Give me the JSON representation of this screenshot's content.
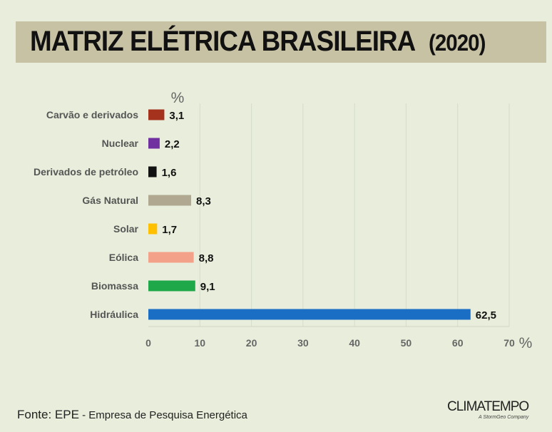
{
  "title": "MATRIZ ELÉTRICA BRASILEIRA",
  "title_year": "(2020)",
  "chart_data": {
    "type": "bar",
    "orientation": "horizontal",
    "unit_label": "%",
    "xaxis_unit": "%",
    "categories": [
      "Carvão e derivados",
      "Nuclear",
      "Derivados de petróleo",
      "Gás Natural",
      "Solar",
      "Eólica",
      "Biomassa",
      "Hidráulica"
    ],
    "values": [
      3.1,
      2.2,
      1.6,
      8.3,
      1.7,
      8.8,
      9.1,
      62.5
    ],
    "data_labels": [
      "3,1",
      "2,2",
      "1,6",
      "8,3",
      "1,7",
      "8,8",
      "9,1",
      "62,5"
    ],
    "colors": [
      "#a5321c",
      "#7030a0",
      "#111111",
      "#b1a891",
      "#ffc000",
      "#f4a18a",
      "#1ea84a",
      "#1a6fc4"
    ],
    "xlim": [
      0,
      70
    ],
    "xticks": [
      "0",
      "10",
      "20",
      "30",
      "40",
      "50",
      "60",
      "70"
    ],
    "grid": true
  },
  "source": {
    "prefix": "Fonte: EPE",
    "rest": " - Empresa de Pesquisa Energética"
  },
  "logo": {
    "name": "CLIMATEMPO",
    "tagline": "A StormGeo Company"
  }
}
